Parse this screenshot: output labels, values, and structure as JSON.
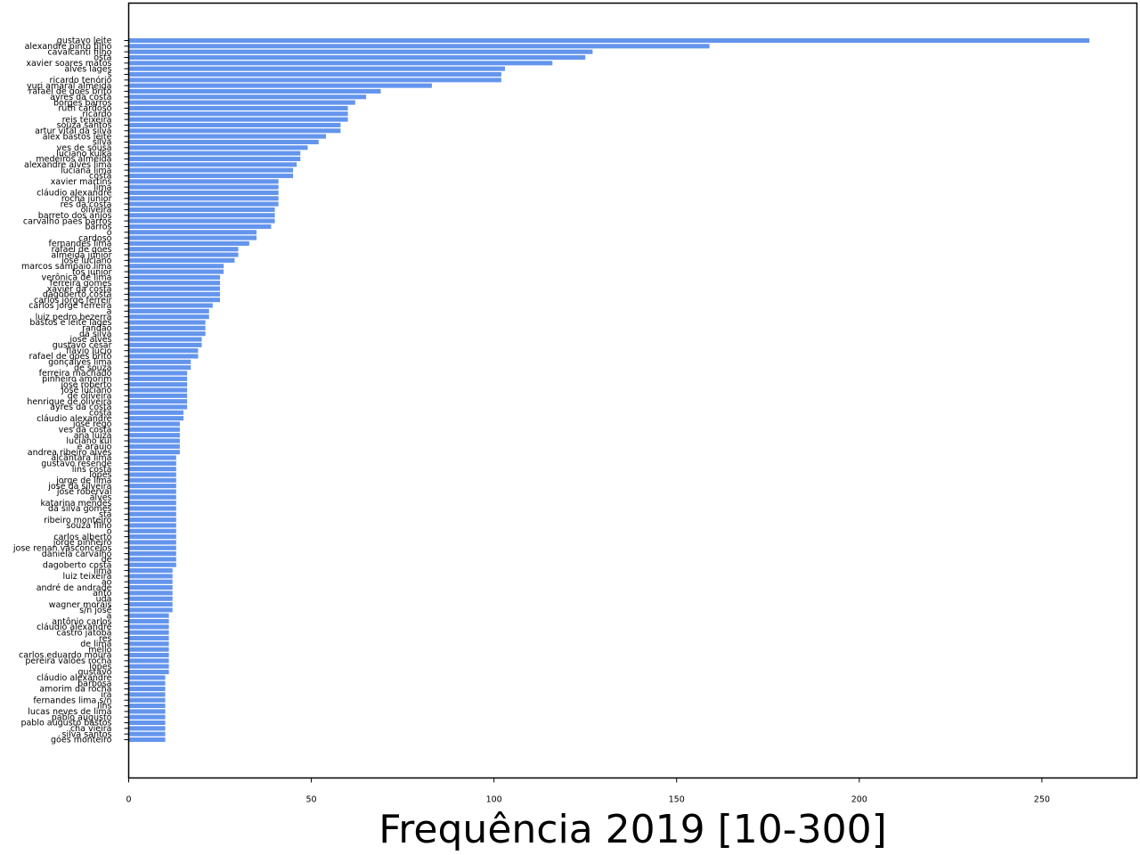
{
  "chart_data": {
    "type": "bar",
    "orientation": "horizontal",
    "title": "",
    "xlabel": "Frequência 2019 [10-300]",
    "ylabel": "",
    "xlim": [
      0,
      276
    ],
    "xticks": [
      0,
      50,
      100,
      150,
      200,
      250
    ],
    "grid": false,
    "bar_color": "#6495ED",
    "categories": [
      "gustavo leite",
      "alexandre pinto filho",
      "cavalcanti filho",
      "osta",
      "xavier soares matos",
      "alves lages",
      "s",
      "ricardo tenório",
      "yuri amaral almeida",
      "rafael de goes brito",
      "ayres da costa",
      "borges barros",
      "ruth cardoso",
      "ricardo",
      "reis teixeira",
      "souza santos",
      "artur vital da silva",
      "alex bastos leite",
      "silva",
      "ves de sousa",
      "luciano kulka",
      "medeiros almeida",
      "alexandre alves lima",
      "luciana lima",
      "costa",
      "xavier martins",
      "lima",
      "cláudio alexandre",
      "rocha júnior",
      "res da costa",
      "oliveira",
      "barreto dos anjos",
      "carvalho paes barros",
      "barros",
      "o",
      "cardoso",
      "fernandes lima",
      "rafael de goes",
      "almeida júnior",
      "josé luciano",
      "marcos sampaio lima",
      "tos júnior",
      "verônica de lima",
      "ferreira gomes",
      "xavier da costa",
      "dagoberto costa",
      "carlos jorge ferreir",
      "carlos jorge ferreira",
      "a",
      "luiz pedro bezerra",
      "bastos e leite lages",
      "randão",
      "da silva",
      "josé alves",
      "gustavo césar",
      "flávio lúcio",
      "rafael de goes brito",
      "gonçalves lima",
      "de souza",
      "ferreira machado",
      "pinheiro amorim",
      "josé roberto",
      "josé luciano",
      "de oliveira",
      "henrique de oliveira",
      "ayres da costa",
      "costa",
      "cláudio alexandre",
      "josé rego",
      "ves da costa",
      "ana luiza",
      "luciano kul",
      "e araújo",
      "andrea ribeiro alves",
      "alcântara lima",
      "gustavo resende",
      "lins costa",
      "lopes",
      "jorge de lima",
      "josé da silveira",
      "josé roberval",
      "alves",
      "katarina mendes",
      "da silva gomes",
      "sta",
      "ribeiro monteiro",
      "souza filho",
      "o",
      "carlos alberto",
      "jorge pinheiro",
      "jose renan vasconcelos",
      "daniela carvalho",
      "de",
      "dagoberto costa",
      "lima",
      "luiz teixeira",
      "ao",
      "andré de andrade",
      "anto",
      "uda",
      "wagner morais",
      "s/n josé",
      "a",
      "antônio carlos",
      "cláudio alexandre",
      "castro jatobá",
      "res",
      "de lima",
      "mello",
      "carlos eduardo moura",
      "pereira valões rocha",
      "lopes",
      "gustavo",
      "cláudio alexandre",
      "barbosa",
      "amorim da rocha",
      "ira",
      "fernandes lima s/n",
      "lins",
      "lucas neves de lima",
      "pablo augusto",
      "pablo augusto bastos",
      "cha vieira",
      "silva santos",
      "góes monteiro"
    ],
    "values": [
      263,
      159,
      127,
      125,
      116,
      103,
      102,
      102,
      83,
      69,
      65,
      62,
      60,
      60,
      60,
      58,
      58,
      54,
      52,
      49,
      47,
      47,
      46,
      45,
      45,
      41,
      41,
      41,
      41,
      41,
      40,
      40,
      40,
      39,
      35,
      35,
      33,
      30,
      30,
      29,
      26,
      26,
      25,
      25,
      25,
      25,
      25,
      23,
      22,
      22,
      21,
      21,
      21,
      20,
      20,
      19,
      19,
      17,
      17,
      16,
      16,
      16,
      16,
      16,
      16,
      16,
      15,
      15,
      14,
      14,
      14,
      14,
      14,
      14,
      13,
      13,
      13,
      13,
      13,
      13,
      13,
      13,
      13,
      13,
      13,
      13,
      13,
      13,
      13,
      13,
      13,
      13,
      13,
      13,
      12,
      12,
      12,
      12,
      12,
      12,
      12,
      12,
      11,
      11,
      11,
      11,
      11,
      11,
      11,
      11,
      11,
      11,
      11,
      10,
      10,
      10,
      10,
      10,
      10,
      10,
      10,
      10,
      10,
      10,
      10
    ]
  }
}
